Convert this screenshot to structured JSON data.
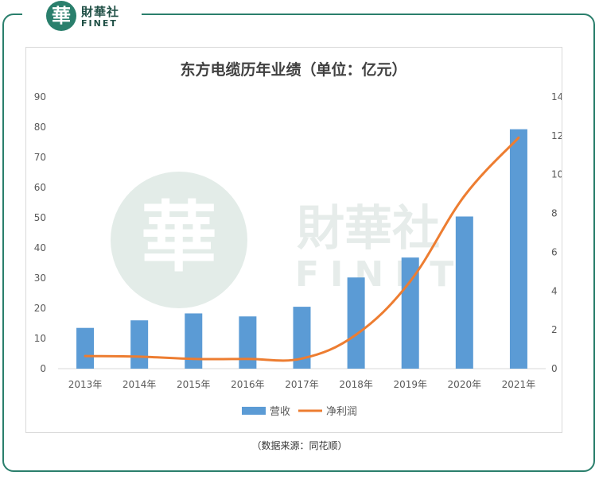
{
  "brand": {
    "logo_char": "華",
    "name_cn": "財華社",
    "name_en": "FINET",
    "watermark_cn": "財華社",
    "watermark_en": "FINET"
  },
  "colors": {
    "frame": "#2a7f6c",
    "bar": "#5b9bd5",
    "line": "#ed7d31",
    "watermark": "#dfe9e5"
  },
  "chart_data": {
    "type": "bar",
    "title": "东方电缆历年业绩（单位：亿元）",
    "categories": [
      "2013年",
      "2014年",
      "2015年",
      "2016年",
      "2017年",
      "2018年",
      "2019年",
      "2020年",
      "2021年"
    ],
    "series": [
      {
        "name": "营收",
        "type": "bar",
        "axis": "left",
        "values": [
          13.5,
          16,
          18.3,
          17.3,
          20.5,
          30.2,
          36.8,
          50.4,
          79.3
        ]
      },
      {
        "name": "净利润",
        "type": "line",
        "axis": "right",
        "values": [
          0.65,
          0.62,
          0.5,
          0.5,
          0.52,
          1.75,
          4.5,
          8.9,
          11.9
        ]
      }
    ],
    "y_left": {
      "min": 0,
      "max": 90,
      "ticks": [
        "0",
        "10",
        "20",
        "30",
        "40",
        "50",
        "60",
        "70",
        "80",
        "90"
      ]
    },
    "y_right": {
      "min": 0,
      "max": 14,
      "ticks": [
        "0",
        "2",
        "4",
        "6",
        "8",
        "10",
        "12",
        "14"
      ]
    },
    "legend_position": "bottom",
    "grid": false
  },
  "source_note": "（数据来源：同花顺）"
}
